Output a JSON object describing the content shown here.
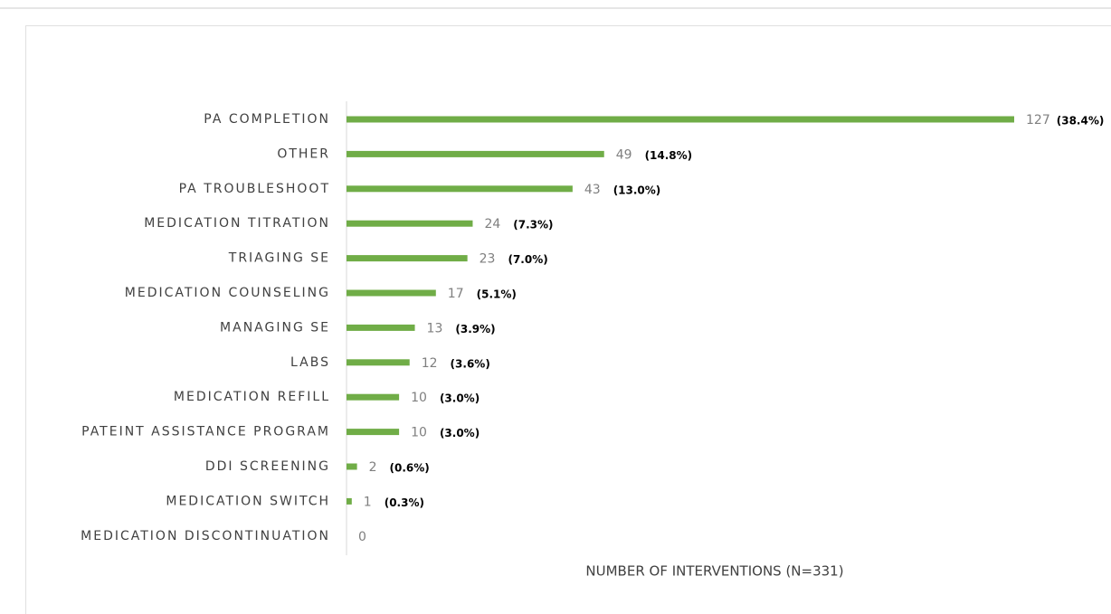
{
  "chart_data": {
    "type": "hbar",
    "x_label": "NUMBER OF INTERVENTIONS (N=331)",
    "categories": [
      "PA COMPLETION",
      "OTHER",
      "PA TROUBLESHOOT",
      "MEDICATION TITRATION",
      "TRIAGING SE",
      "MEDICATION COUNSELING",
      "MANAGING SE",
      "LABS",
      "MEDICATION REFILL",
      "PATEINT ASSISTANCE PROGRAM",
      "DDI SCREENING",
      "MEDICATION SWITCH",
      "MEDICATION DISCONTINUATION"
    ],
    "values": [
      127,
      49,
      43,
      24,
      23,
      17,
      13,
      12,
      10,
      10,
      2,
      1,
      0
    ],
    "percent_labels": [
      "(38.4%)",
      "(14.8%)",
      "(13.0%)",
      "(7.3%)",
      "(7.0%)",
      "(5.1%)",
      "(3.9%)",
      "(3.6%)",
      "(3.0%)",
      "(3.0%)",
      "(0.6%)",
      "(0.3%)",
      ""
    ],
    "color": "#70ad47",
    "xlim": [
      0,
      127
    ]
  }
}
